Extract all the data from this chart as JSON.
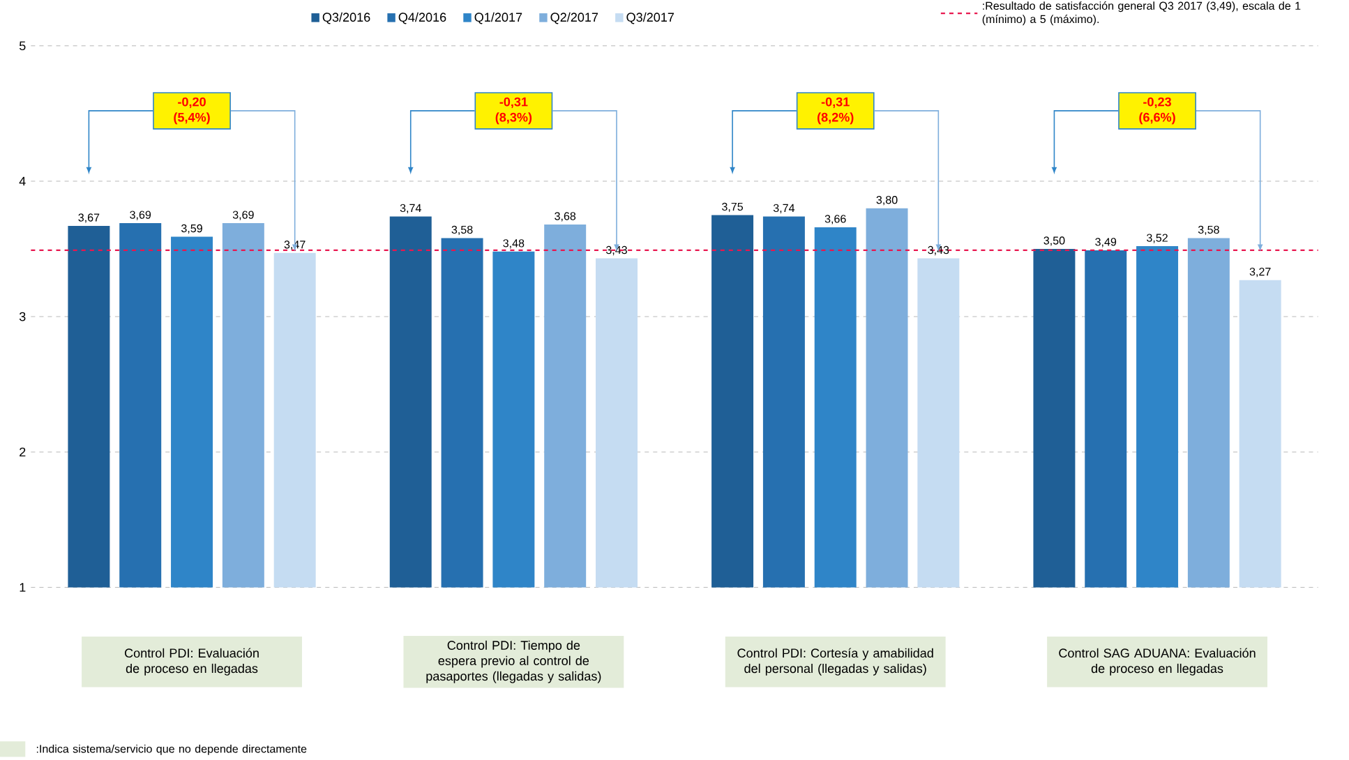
{
  "chart_data": {
    "type": "bar",
    "categories": [
      "Control PDI: Evaluación de proceso en llegadas",
      "Control PDI: Tiempo de espera previo al control de pasaportes (llegadas y salidas)",
      "Control PDI: Cortesía y amabilidad del personal (llegadas y salidas)",
      "Control SAG ADUANA: Evaluación de proceso en llegadas"
    ],
    "series": [
      {
        "name": "Q3/2016",
        "color": "#1f5f96",
        "values": [
          3.67,
          3.74,
          3.75,
          3.5
        ],
        "value_labels": [
          "3,67",
          "3,74",
          "3,75",
          "3,50"
        ]
      },
      {
        "name": "Q4/2016",
        "color": "#2670b0",
        "values": [
          3.69,
          3.58,
          3.74,
          3.49
        ],
        "value_labels": [
          "3,69",
          "3,58",
          "3,74",
          "3,49"
        ]
      },
      {
        "name": "Q1/2017",
        "color": "#2f85c8",
        "values": [
          3.59,
          3.48,
          3.66,
          3.52
        ],
        "value_labels": [
          "3,59",
          "3,48",
          "3,66",
          "3,52"
        ]
      },
      {
        "name": "Q2/2017",
        "color": "#7eaedc",
        "values": [
          3.69,
          3.68,
          3.8,
          3.58
        ],
        "value_labels": [
          "3,69",
          "3,68",
          "3,80",
          "3,58"
        ]
      },
      {
        "name": "Q3/2017",
        "color": "#c5dcf2",
        "values": [
          3.47,
          3.43,
          3.43,
          3.27
        ],
        "value_labels": [
          "3,47",
          "3,43",
          "3,43",
          "3,27"
        ]
      }
    ],
    "ylim": [
      1,
      5
    ],
    "yticks": [
      1,
      2,
      3,
      4,
      5
    ],
    "grid": "y",
    "legend": "top",
    "ref_lines": [
      {
        "axis": "y",
        "value": 3.49,
        "color": "#e8174f",
        "line_style": "dashed",
        "label": ":Resultado de satisfacción general Q3 2017 (3,49), escala de 1 (mínimo) a 5 (máximo)."
      }
    ],
    "annotations": [
      "-0,20 (5,4%)",
      "-0,31 (8,3%)",
      "-0,31 (8,2%)",
      "-0,23 (6,6%)",
      ":Indica sistema/servicio que no depende directamente"
    ]
  }
}
